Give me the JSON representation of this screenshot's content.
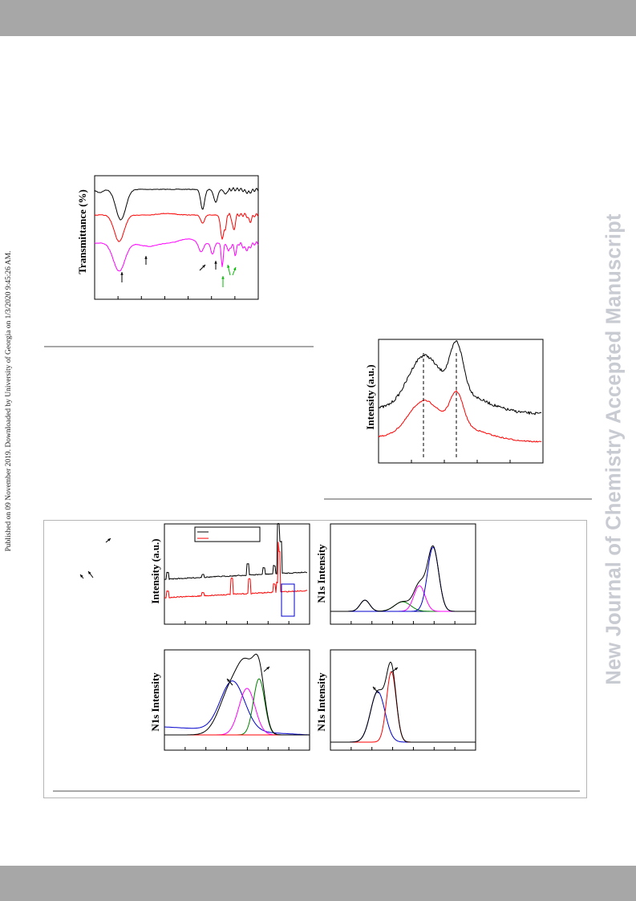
{
  "page": {
    "side_note": "Published on 09 November 2019. Downloaded by University of Georgia on 1/3/2020 9:45:26 AM.",
    "watermark": "New Journal of Chemistry Accepted Manuscript"
  },
  "chart_data": [
    {
      "type": "line",
      "ylabel": "Transmittance (%)",
      "xlabel": "",
      "series": [
        {
          "color": "#000000"
        },
        {
          "color": "#ff0000"
        },
        {
          "color": "#ff00ff"
        }
      ],
      "annotations": "arrows mark bands on the magenta trace (black and green arrows)"
    },
    {
      "type": "line",
      "ylabel": "Intensity (a.u.)",
      "xlabel": "",
      "series": [
        {
          "color": "#000000"
        },
        {
          "color": "#ff0000"
        }
      ],
      "annotations": "two dashed vertical lines at the two broad peaks"
    },
    {
      "type": "line",
      "ylabel": "Intensity (a.u.)",
      "series": [
        {
          "color": "#000000"
        },
        {
          "color": "#ff0000"
        }
      ],
      "legend": "top-center",
      "annotations": "blue rectangle highlights the N1s region"
    },
    {
      "type": "line",
      "ylabel": "N1s Intensity",
      "series": [
        {
          "color": "#000000"
        },
        {
          "color": "#0000cc"
        },
        {
          "color": "#ff00ff"
        },
        {
          "color": "#008000"
        },
        {
          "color": "#00008b"
        }
      ]
    },
    {
      "type": "line",
      "ylabel": "N1s Intensity",
      "series": [
        {
          "color": "#000000"
        },
        {
          "color": "#0000cc"
        },
        {
          "color": "#ff00ff"
        },
        {
          "color": "#008000"
        },
        {
          "color": "#ff0000"
        }
      ]
    },
    {
      "type": "line",
      "ylabel": "N1s Intensity",
      "series": [
        {
          "color": "#000000"
        },
        {
          "color": "#0000cc"
        },
        {
          "color": "#ff0000"
        }
      ]
    }
  ]
}
